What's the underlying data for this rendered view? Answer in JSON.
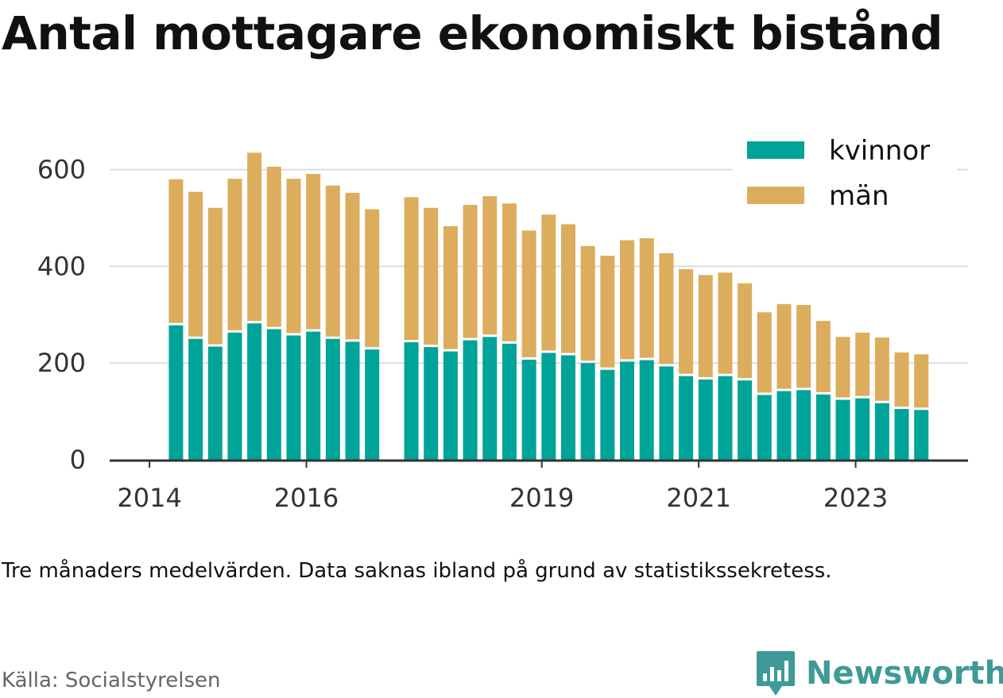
{
  "title": "Antal mottagare ekonomiskt bistånd",
  "note": "Tre månaders medelvärden. Data saknas ibland på grund av statistikssekretess.",
  "source": "Källa: Socialstyrelsen",
  "brand": "Newsworthy",
  "colors": {
    "kvinnor": "#00a398",
    "man": "#dbad5d",
    "grid": "#dddddd",
    "axis": "#333333",
    "brand": "#3f9a97"
  },
  "chart_data": {
    "type": "bar",
    "stacked": true,
    "ylim": [
      0,
      700
    ],
    "yticks": [
      0,
      200,
      400,
      600
    ],
    "xtick_labels": [
      "2014",
      "2016",
      "2019",
      "2021",
      "2023"
    ],
    "legend_position": "top-right",
    "grid": true,
    "series": [
      {
        "name": "kvinnor",
        "color": "#00a398",
        "values": [
          278,
          250,
          234,
          263,
          282,
          270,
          257,
          265,
          250,
          244,
          228,
          null,
          243,
          233,
          224,
          247,
          254,
          240,
          207,
          221,
          216,
          200,
          186,
          203,
          206,
          193,
          173,
          166,
          173,
          164,
          134,
          142,
          144,
          135,
          124,
          127,
          117,
          105,
          103
        ]
      },
      {
        "name": "män",
        "color": "#dbad5d",
        "values": [
          302,
          304,
          287,
          318,
          353,
          336,
          324,
          326,
          317,
          308,
          290,
          null,
          300,
          288,
          259,
          280,
          291,
          290,
          267,
          286,
          271,
          242,
          236,
          251,
          252,
          234,
          221,
          216,
          214,
          201,
          171,
          180,
          176,
          152,
          130,
          136,
          136,
          117,
          115
        ]
      }
    ]
  }
}
